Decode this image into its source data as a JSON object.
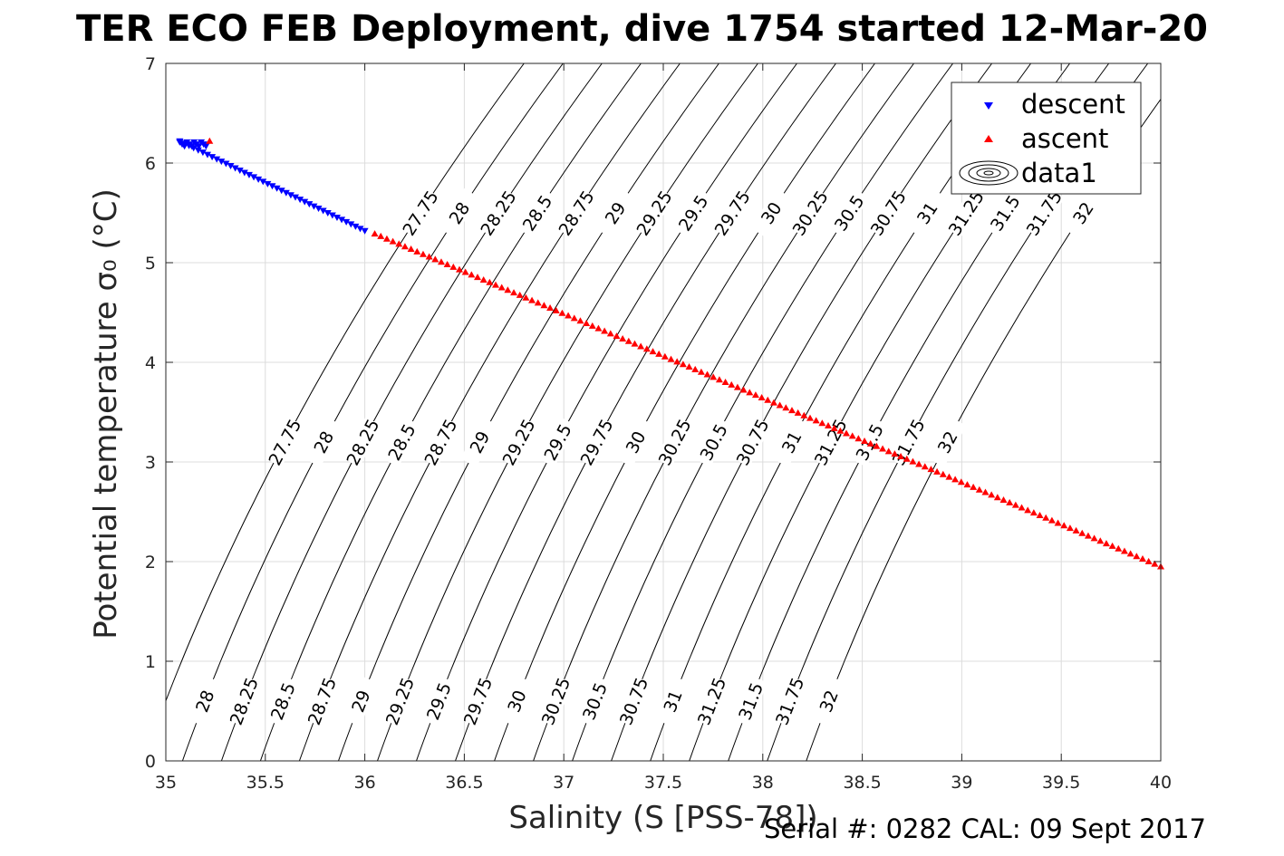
{
  "chart_data": {
    "type": "scatter",
    "title": "TER ECO FEB Deployment, dive 1754 started 12-Mar-20",
    "xlabel": "Salinity (S [PSS-78])",
    "ylabel": "Potential temperature σ₀ (°C)",
    "xlim": [
      35,
      40
    ],
    "ylim": [
      0,
      7
    ],
    "grid": true,
    "legend_placement": "top-right",
    "legend": [
      "descent",
      "ascent",
      "data1"
    ],
    "x_ticks": [
      35,
      35.5,
      36,
      36.5,
      37,
      37.5,
      38,
      38.5,
      39,
      39.5,
      40
    ],
    "y_ticks": [
      0,
      1,
      2,
      3,
      4,
      5,
      6,
      7
    ],
    "series": [
      {
        "name": "descent",
        "marker": "triangle-down",
        "color": "#0000ff",
        "x_range": [
          35.07,
          36.0
        ],
        "y_range": [
          6.22,
          5.32
        ]
      },
      {
        "name": "ascent",
        "marker": "triangle-up",
        "color": "#ff0000",
        "x_range": [
          36.05,
          40.0
        ],
        "y_range": [
          5.29,
          1.95
        ]
      }
    ],
    "contours": {
      "name": "data1",
      "color": "#000000",
      "levels": [
        27.75,
        28,
        28.25,
        28.5,
        28.75,
        29,
        29.25,
        29.5,
        29.75,
        30,
        30.25,
        30.5,
        30.75,
        31,
        31.25,
        31.5,
        31.75,
        32
      ]
    }
  },
  "footer": "Serial #: 0282  CAL: 09 Sept 2017"
}
